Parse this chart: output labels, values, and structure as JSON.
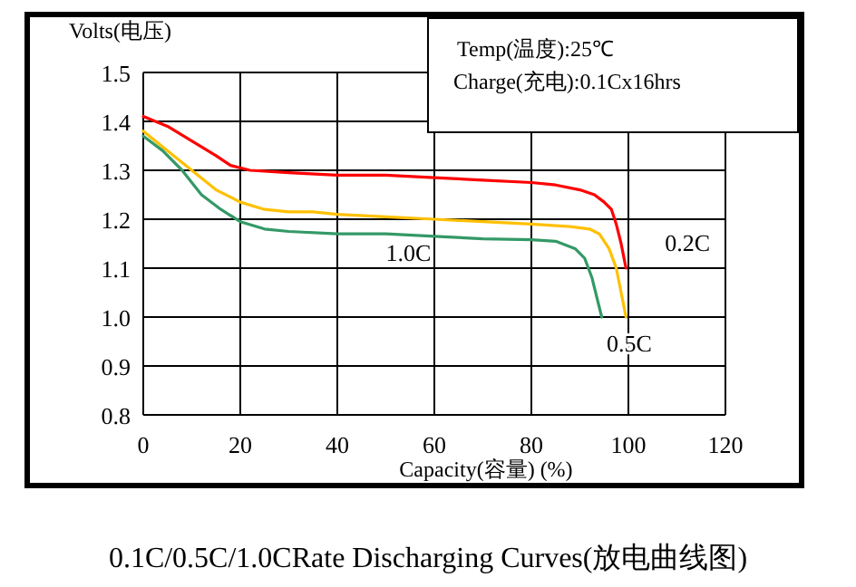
{
  "chart_data": {
    "type": "line",
    "title": "0.1C/0.5C/1.0CRate Discharging Curves(放电曲线图)",
    "xlabel": "Capacity(容量) (%)",
    "ylabel": "Volts(电压)",
    "annotations": [
      "Temp(温度):25℃",
      "Charge(充电):0.1Cx16hrs"
    ],
    "xlim": [
      0,
      120
    ],
    "xticks": [
      0,
      20,
      40,
      60,
      80,
      100,
      120
    ],
    "ylim": [
      0.8,
      1.5
    ],
    "yticks": [
      0.8,
      0.9,
      {
        "value": 1.0,
        "label": "1.0"
      },
      1.1,
      1.2,
      1.3,
      1.4,
      1.5
    ],
    "grid": true,
    "marker": "none",
    "line_style": "solid",
    "series": [
      {
        "name": "0.2C",
        "color": "#ff0000",
        "x": [
          0,
          5,
          10,
          15,
          18,
          22,
          30,
          40,
          50,
          60,
          70,
          80,
          85,
          90,
          93,
          95,
          96.5,
          97.5,
          98.5,
          99.5
        ],
        "values": [
          1.41,
          1.39,
          1.36,
          1.33,
          1.31,
          1.3,
          1.295,
          1.29,
          1.29,
          1.285,
          1.28,
          1.275,
          1.27,
          1.26,
          1.25,
          1.235,
          1.22,
          1.19,
          1.15,
          1.1
        ]
      },
      {
        "name": "0.5C",
        "color": "#ffc000",
        "x": [
          0,
          5,
          10,
          15,
          20,
          25,
          30,
          35,
          40,
          50,
          60,
          70,
          80,
          88,
          92,
          94,
          96,
          97.5,
          98.5,
          99.5
        ],
        "values": [
          1.38,
          1.34,
          1.3,
          1.26,
          1.235,
          1.22,
          1.215,
          1.215,
          1.21,
          1.205,
          1.2,
          1.195,
          1.19,
          1.185,
          1.18,
          1.17,
          1.14,
          1.1,
          1.05,
          1.0
        ]
      },
      {
        "name": "1.0C",
        "color": "#339966",
        "x": [
          0,
          4,
          8,
          12,
          16,
          20,
          25,
          30,
          40,
          50,
          60,
          70,
          80,
          85,
          89,
          91,
          92.5,
          93.5,
          94.5
        ],
        "values": [
          1.37,
          1.34,
          1.3,
          1.25,
          1.22,
          1.195,
          1.18,
          1.175,
          1.17,
          1.17,
          1.165,
          1.16,
          1.158,
          1.155,
          1.14,
          1.12,
          1.08,
          1.04,
          1.0
        ]
      }
    ]
  }
}
